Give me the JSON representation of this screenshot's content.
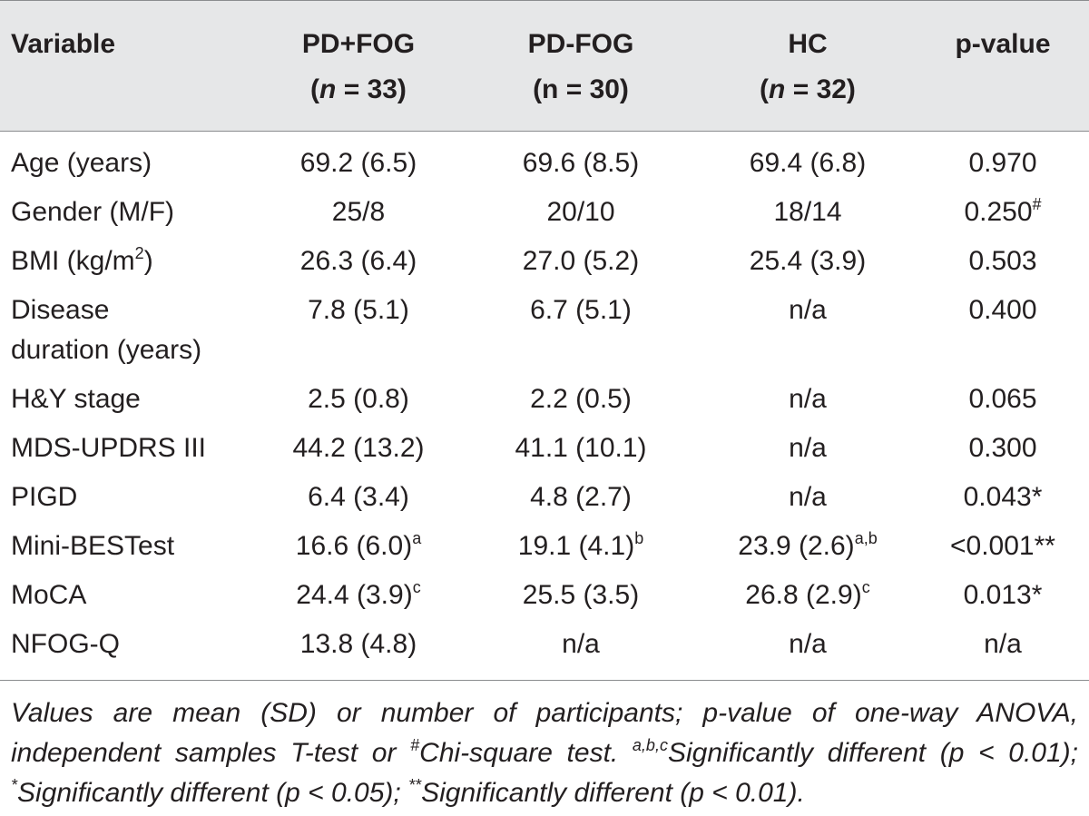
{
  "table": {
    "headers": [
      {
        "line1": "Variable",
        "line2": ""
      },
      {
        "line1": "PD+FOG",
        "line2_n": "n",
        "line2_rest": " = 33)"
      },
      {
        "line1": "PD-FOG",
        "line2_plain": "(n = 30)"
      },
      {
        "line1": "HC",
        "line2_n": "n",
        "line2_rest": " = 32)"
      },
      {
        "line1": "p-value",
        "line2": ""
      }
    ],
    "rows": [
      {
        "variable": "Age (years)",
        "pdfog": "69.2 (6.5)",
        "pdnofog": "69.6 (8.5)",
        "hc": "69.4 (6.8)",
        "p": "0.970"
      },
      {
        "variable": "Gender (M/F)",
        "pdfog": "25/8",
        "pdnofog": "20/10",
        "hc": "18/14",
        "p": "0.250",
        "p_sup": "#"
      },
      {
        "variable": "BMI (kg/m",
        "variable_sup": "2",
        "variable_tail": ")",
        "pdfog": "26.3 (6.4)",
        "pdnofog": "27.0 (5.2)",
        "hc": "25.4 (3.9)",
        "p": "0.503"
      },
      {
        "variable": "Disease",
        "variable_line2": "duration (years)",
        "pdfog": "7.8 (5.1)",
        "pdnofog": "6.7 (5.1)",
        "hc": "n/a",
        "p": "0.400"
      },
      {
        "variable": "H&Y stage",
        "pdfog": "2.5 (0.8)",
        "pdnofog": "2.2 (0.5)",
        "hc": "n/a",
        "p": "0.065"
      },
      {
        "variable": "MDS-UPDRS III",
        "pdfog": "44.2 (13.2)",
        "pdnofog": "41.1 (10.1)",
        "hc": "n/a",
        "p": "0.300"
      },
      {
        "variable": "PIGD",
        "pdfog": "6.4 (3.4)",
        "pdnofog": "4.8 (2.7)",
        "hc": "n/a",
        "p": "0.043*"
      },
      {
        "variable": "Mini-BESTest",
        "pdfog": "16.6 (6.0)",
        "pdfog_sup": "a",
        "pdnofog": "19.1 (4.1)",
        "pdnofog_sup": "b",
        "hc": "23.9 (2.6)",
        "hc_sup": "a,b",
        "p": "<0.001**"
      },
      {
        "variable": "MoCA",
        "pdfog": "24.4 (3.9)",
        "pdfog_sup": "c",
        "pdnofog": "25.5 (3.5)",
        "hc": "26.8 (2.9)",
        "hc_sup": "c",
        "p": "0.013*"
      },
      {
        "variable": "NFOG-Q",
        "pdfog": "13.8 (4.8)",
        "pdnofog": "n/a",
        "hc": "n/a",
        "p": "n/a"
      }
    ]
  },
  "footnote": {
    "part1": "Values are mean (SD) or number of participants; p-value of one-way ANOVA, independent samples T-test or ",
    "hash": "#",
    "part2": "Chi-square test. ",
    "abc": "a,b,c",
    "part3": "Significantly different (p < 0.01); ",
    "star": "*",
    "part4": "Significantly different (p < 0.05); ",
    "stars": "**",
    "part5": "Significantly different (p < 0.01)."
  }
}
